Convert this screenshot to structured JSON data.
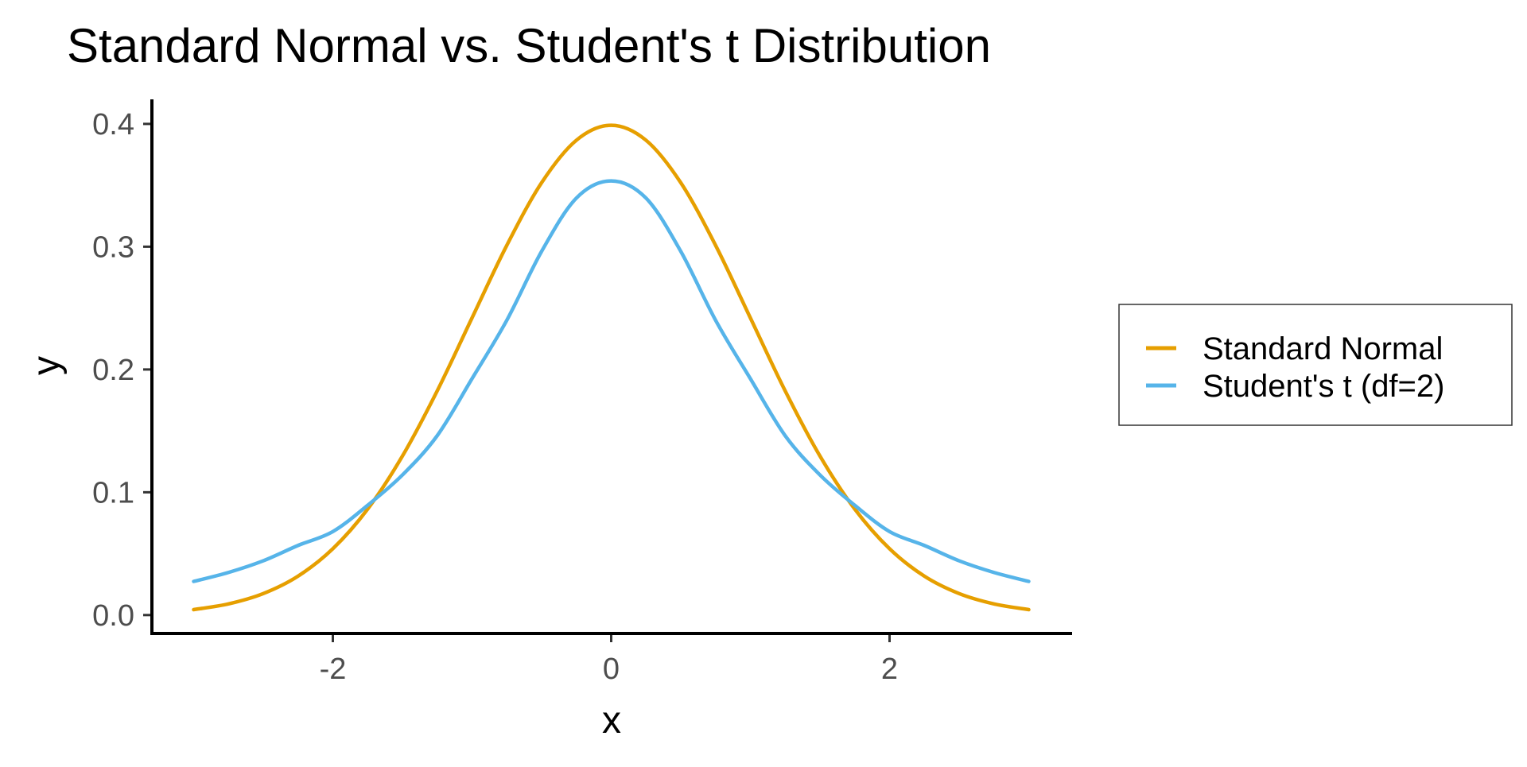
{
  "chart_data": {
    "type": "line",
    "title": "Standard Normal vs. Student's t Distribution",
    "xlabel": "x",
    "ylabel": "y",
    "xlim": [
      -3.3,
      3.3
    ],
    "ylim": [
      -0.015,
      0.42
    ],
    "x_ticks": [
      -2,
      0,
      2
    ],
    "x_tick_labels": [
      "-2",
      "0",
      "2"
    ],
    "y_ticks": [
      0.0,
      0.1,
      0.2,
      0.3,
      0.4
    ],
    "y_tick_labels": [
      "0.0",
      "0.1",
      "0.2",
      "0.3",
      "0.4"
    ],
    "grid": false,
    "legend_position": "right",
    "x": [
      -3.0,
      -2.75,
      -2.5,
      -2.25,
      -2.0,
      -1.75,
      -1.5,
      -1.25,
      -1.0,
      -0.75,
      -0.5,
      -0.25,
      0.0,
      0.25,
      0.5,
      0.75,
      1.0,
      1.25,
      1.5,
      1.75,
      2.0,
      2.25,
      2.5,
      2.75,
      3.0
    ],
    "series": [
      {
        "name": "Standard Normal",
        "color": "#E69F00",
        "values": [
          0.0044,
          0.0091,
          0.0175,
          0.0317,
          0.054,
          0.0863,
          0.1295,
          0.1826,
          0.242,
          0.3011,
          0.3521,
          0.3867,
          0.3989,
          0.3867,
          0.3521,
          0.3011,
          0.242,
          0.1826,
          0.1295,
          0.0863,
          0.054,
          0.0317,
          0.0175,
          0.0091,
          0.0044
        ]
      },
      {
        "name": "Student's t (df=2)",
        "color": "#56B4E9",
        "values": [
          0.0274,
          0.0347,
          0.0442,
          0.0567,
          0.068,
          0.0894,
          0.1141,
          0.1461,
          0.1925,
          0.2401,
          0.2962,
          0.3396,
          0.3536,
          0.3396,
          0.2962,
          0.2401,
          0.1925,
          0.1461,
          0.1141,
          0.0894,
          0.068,
          0.0567,
          0.0442,
          0.0347,
          0.0274
        ]
      }
    ]
  }
}
